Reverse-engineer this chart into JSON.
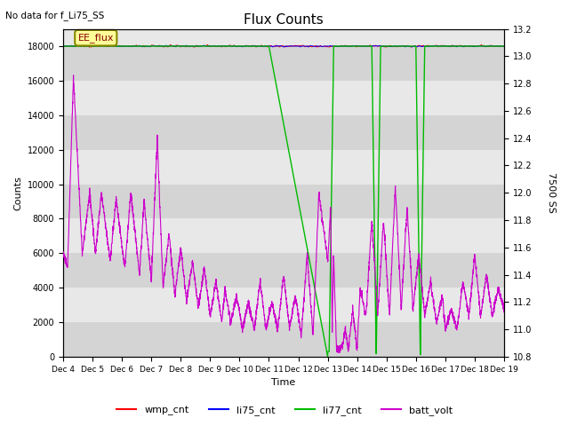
{
  "title": "Flux Counts",
  "xlabel": "Time",
  "ylabel_left": "Counts",
  "ylabel_right": "7500 SS",
  "top_note": "No data for f_Li75_SS",
  "annotation": "EE_flux",
  "x_tick_labels": [
    "Dec 4",
    "Dec 5",
    "Dec 6",
    "Dec 7",
    "Dec 8",
    "Dec 9",
    "Dec 10",
    "Dec 11",
    "Dec 12",
    "Dec 13",
    "Dec 14",
    "Dec 15",
    "Dec 16",
    "Dec 17",
    "Dec 18",
    "Dec 19"
  ],
  "ylim_left": [
    0,
    19000
  ],
  "ylim_right": [
    10.8,
    13.2
  ],
  "y_ticks_left": [
    0,
    2000,
    4000,
    6000,
    8000,
    10000,
    12000,
    14000,
    16000,
    18000
  ],
  "y_ticks_right": [
    10.8,
    11.0,
    11.2,
    11.4,
    11.6,
    11.8,
    12.0,
    12.2,
    12.4,
    12.6,
    12.8,
    13.0,
    13.2
  ],
  "band_colors_alt": [
    "#d4d4d4",
    "#e8e8e8"
  ],
  "wmp_color": "#ff0000",
  "li75_color": "#0000ff",
  "li77_color": "#00bb00",
  "batt_color": "#cc00cc",
  "legend_labels": [
    "wmp_cnt",
    "li75_cnt",
    "li77_cnt",
    "batt_volt"
  ],
  "annot_fc": "#ffff99",
  "annot_ec": "#888800"
}
